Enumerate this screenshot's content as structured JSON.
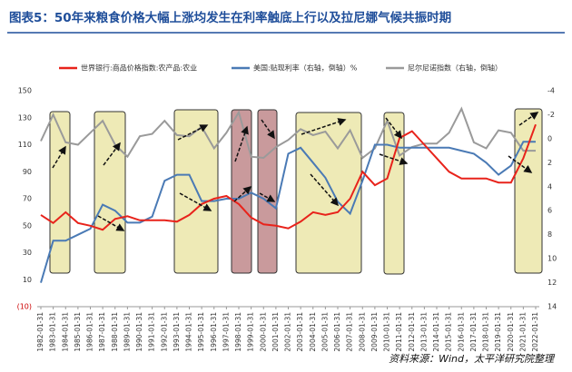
{
  "chart_data": {
    "type": "line",
    "title": "图表5：50年来粮食价格大幅上涨均发生在利率触底上行以及拉尼娜气候共振时期",
    "source": "资料来源：Wind，太平洋研究院整理",
    "x": [
      "1982-01-31",
      "1983-01-31",
      "1984-01-31",
      "1985-01-31",
      "1986-01-31",
      "1987-01-31",
      "1988-01-31",
      "1989-01-31",
      "1990-01-31",
      "1991-01-31",
      "1992-01-31",
      "1993-01-31",
      "1994-01-31",
      "1995-01-31",
      "1996-01-31",
      "1997-01-31",
      "1998-01-31",
      "1999-01-31",
      "2000-01-31",
      "2001-01-31",
      "2002-01-31",
      "2003-01-31",
      "2004-01-31",
      "2005-01-31",
      "2006-01-31",
      "2007-01-31",
      "2008-01-31",
      "2009-01-31",
      "2010-01-31",
      "2011-01-31",
      "2012-01-31",
      "2013-01-31",
      "2014-01-31",
      "2015-01-31",
      "2016-01-31",
      "2017-01-31",
      "2018-01-31",
      "2019-01-31",
      "2020-01-31",
      "2021-01-31",
      "2022-01-31"
    ],
    "series": [
      {
        "name": "世界银行:商品价格指数:农产品:农业",
        "color": "#e8231b",
        "values": [
          58,
          52,
          60,
          52,
          50,
          47,
          55,
          57,
          54,
          54,
          54,
          53,
          58,
          66,
          70,
          72,
          66,
          56,
          51,
          50,
          48,
          53,
          60,
          58,
          60,
          70,
          90,
          80,
          85,
          115,
          120,
          110,
          100,
          90,
          85,
          85,
          85,
          82,
          82,
          100,
          125
        ]
      },
      {
        "name": "美国:贴现利率（右轴，倒轴）%",
        "color": "#4a7ab5",
        "axis": "y2",
        "values": [
          12,
          8.5,
          8.5,
          8,
          7.5,
          5.5,
          6,
          7,
          7,
          6.5,
          3.5,
          3,
          3,
          5.2,
          5.2,
          5,
          5,
          4.5,
          5,
          5.8,
          1.25,
          0.75,
          2,
          3.25,
          5.25,
          6.25,
          3.5,
          0.5,
          0.5,
          0.75,
          0.75,
          0.75,
          0.75,
          0.75,
          1,
          1.25,
          2,
          3,
          2.25,
          0.25,
          0.25
        ]
      },
      {
        "name": "尼尔尼诺指数（右轴，倒轴）",
        "color": "#9a9a9a",
        "axis": "y2",
        "values": [
          0.2,
          -2,
          0.3,
          0.5,
          -0.5,
          -1.5,
          0.5,
          1.5,
          -0.2,
          -0.4,
          -1.5,
          -0.3,
          -0.2,
          -1,
          0.8,
          -0.5,
          -2.2,
          1.5,
          1.6,
          0.7,
          0.1,
          -0.8,
          -0.3,
          -0.6,
          0.8,
          -0.7,
          1.6,
          0.8,
          -1.5,
          1.4,
          0.7,
          0.4,
          0.4,
          -0.5,
          -2.5,
          0.3,
          0.8,
          -0.7,
          -0.5,
          1,
          1
        ]
      }
    ],
    "ylim": [
      -10,
      150
    ],
    "yticks": [
      {
        "value": -10,
        "label": "(10)"
      },
      10,
      30,
      50,
      70,
      90,
      110,
      130,
      150
    ],
    "y2lim": [
      14,
      -4
    ],
    "y2ticks": [
      14,
      12,
      10,
      8,
      6,
      4,
      2,
      0,
      -2,
      -4
    ]
  }
}
